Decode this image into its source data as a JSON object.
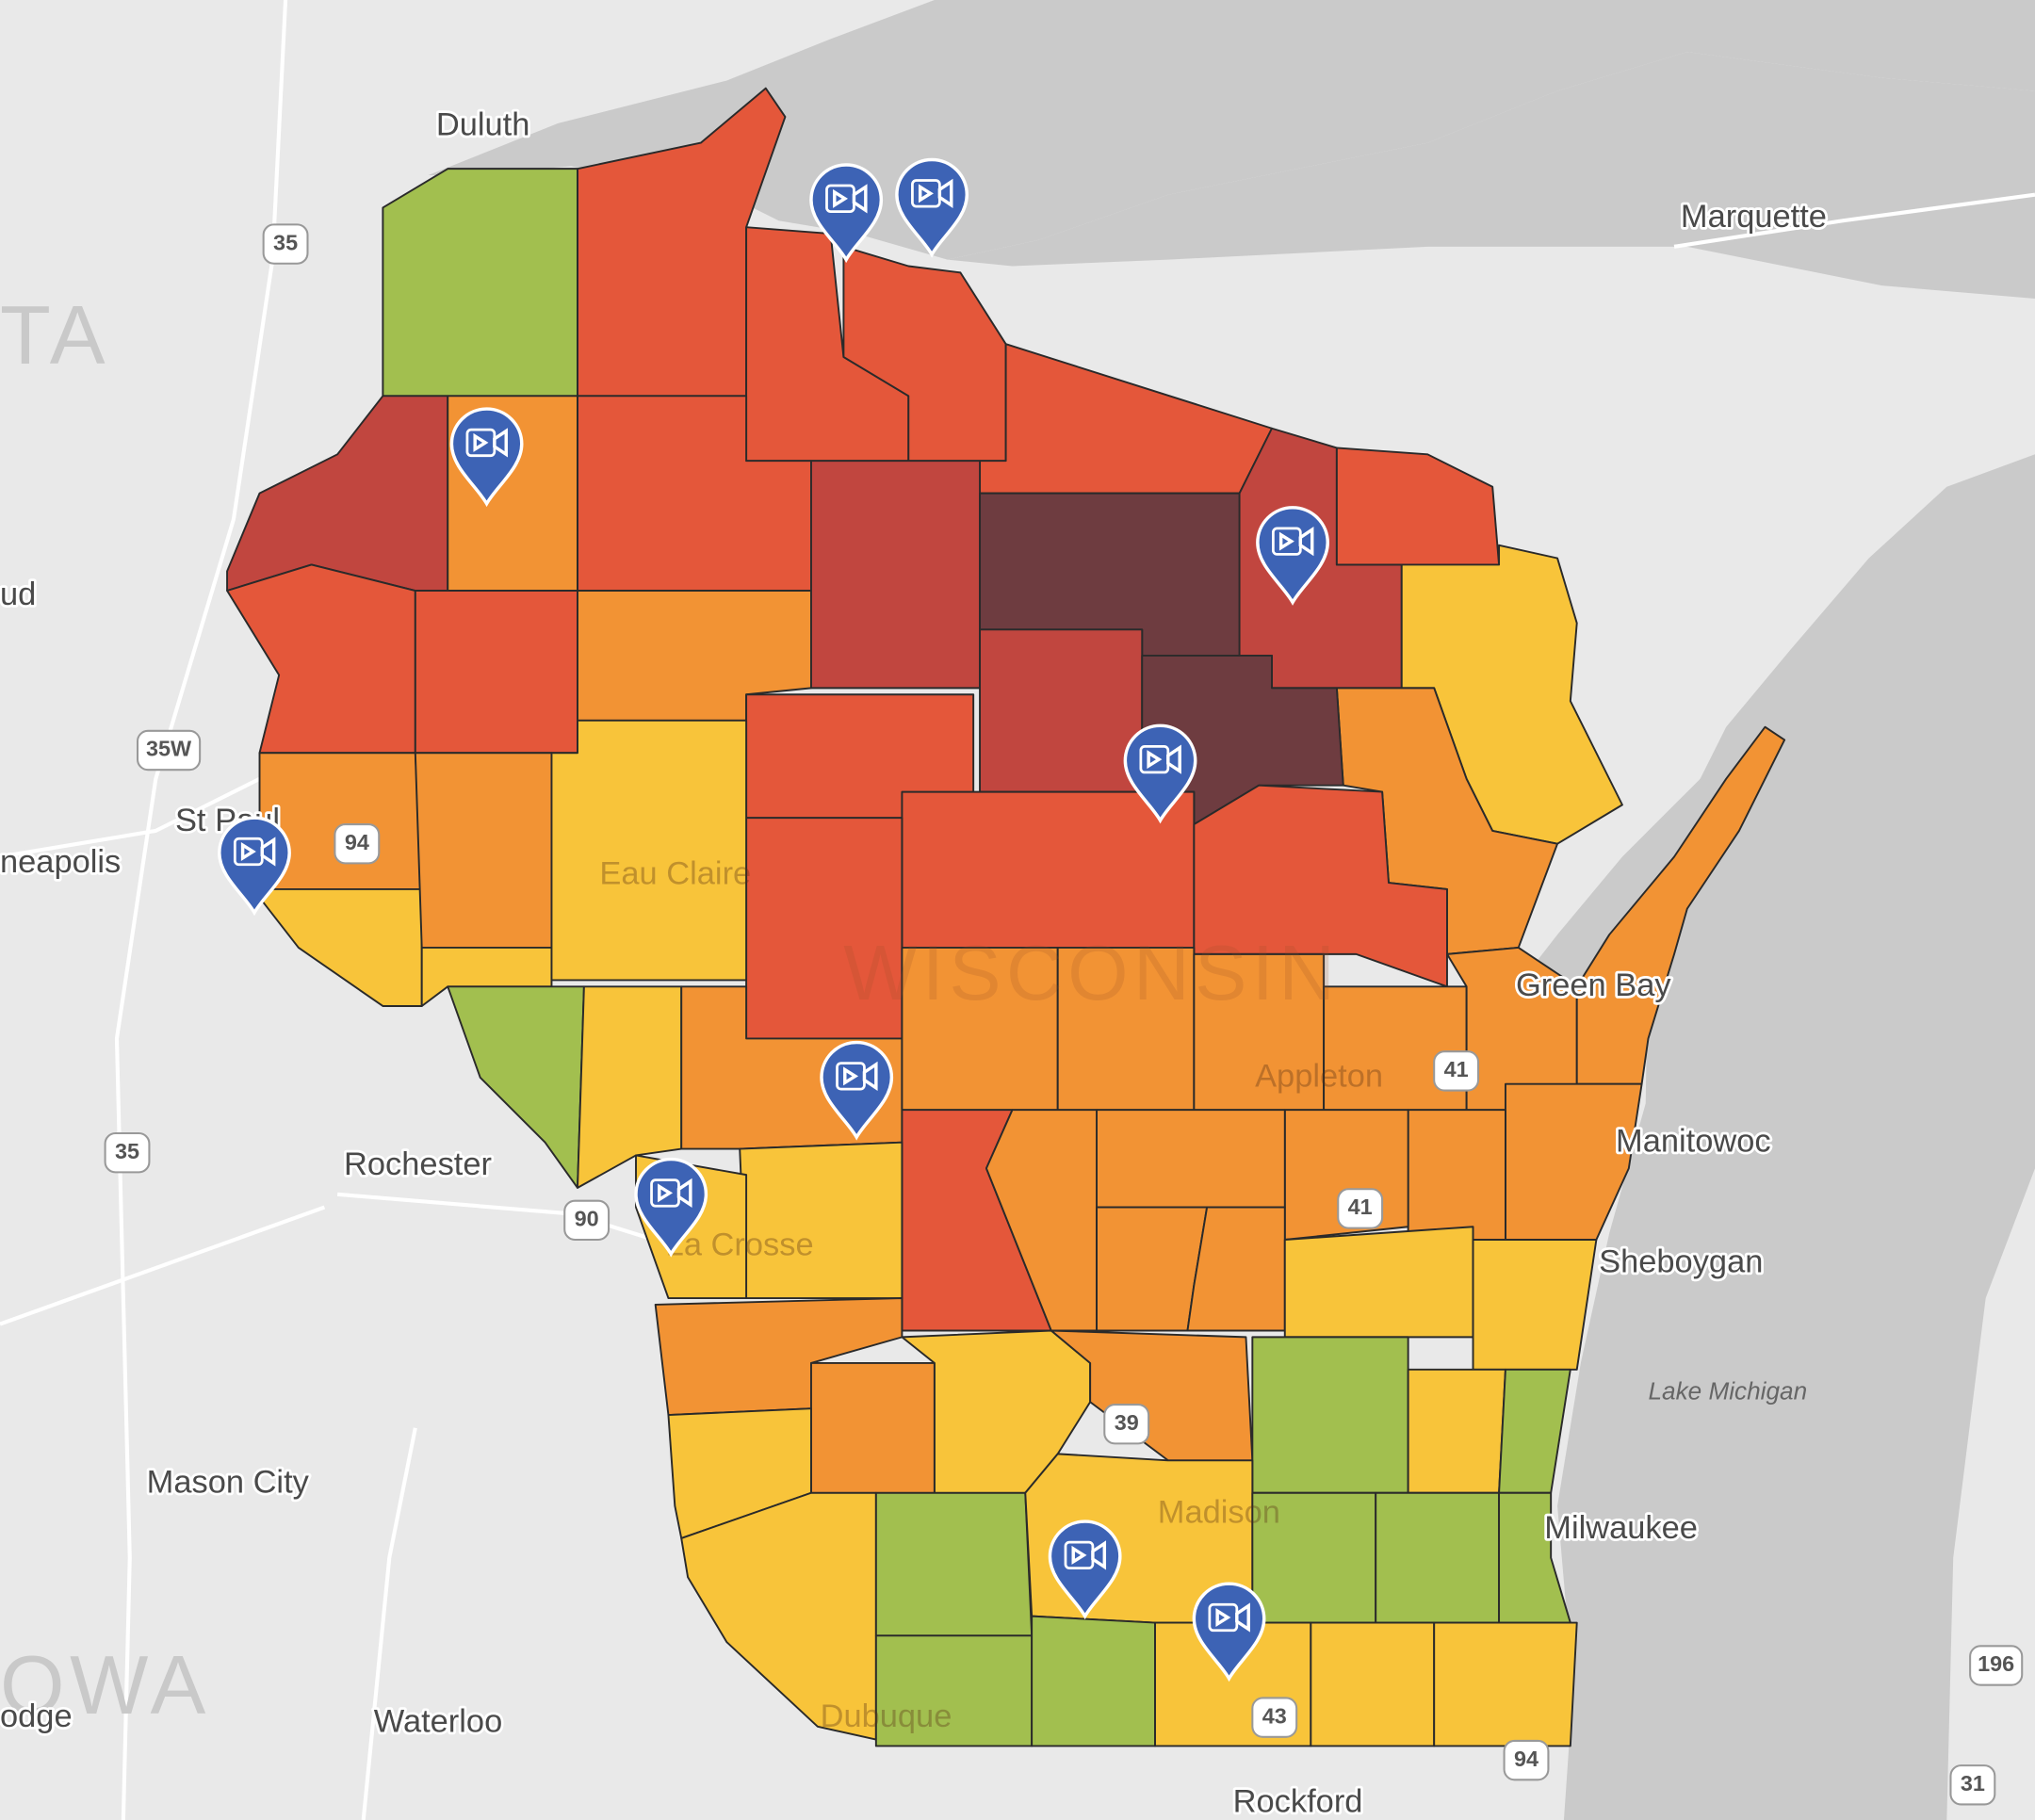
{
  "map": {
    "place_labels": [
      "Duluth",
      "Marquette",
      "ud",
      "St Paul",
      "neapolis",
      "Eau Claire",
      "Green Bay",
      "Appleton",
      "Manitowoc",
      "Rochester",
      "La Crosse",
      "Sheboygan",
      "Mason City",
      "Madison",
      "Milwaukee",
      "Waterloo",
      "Dubuque",
      "odge",
      "Rockford"
    ],
    "region_labels": [
      "TA",
      "OWA",
      "WISCONSIN"
    ],
    "water_labels": [
      "Lake Michigan"
    ],
    "highway_shields": [
      "35",
      "35W",
      "94",
      "35",
      "90",
      "41",
      "41",
      "39",
      "43",
      "94",
      "196",
      "31"
    ]
  }
}
